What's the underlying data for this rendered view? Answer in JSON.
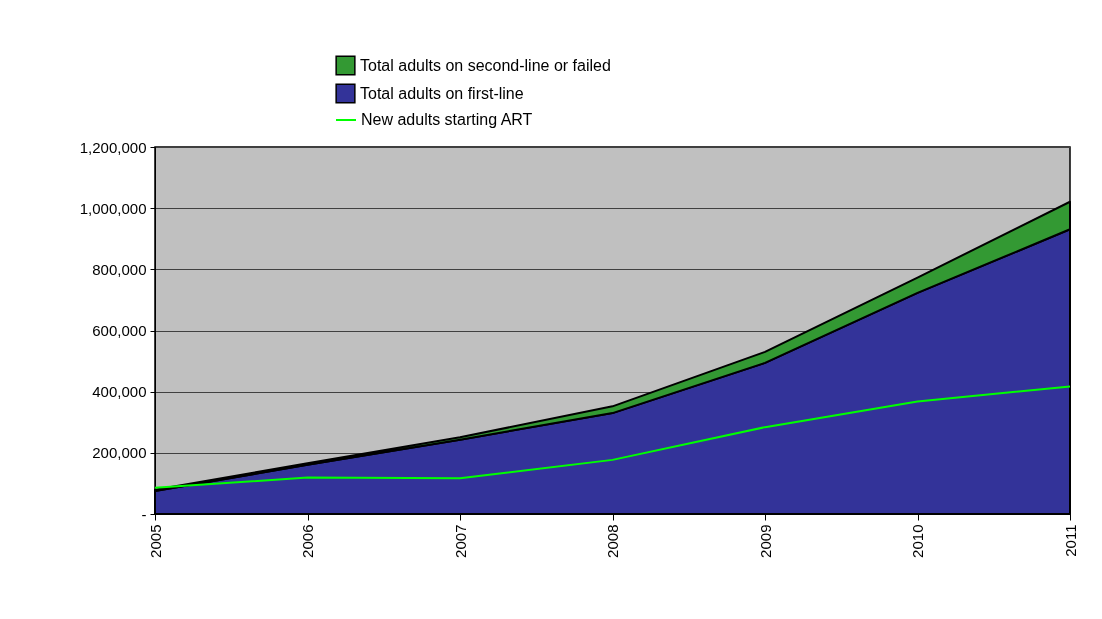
{
  "chart_data": {
    "type": "area",
    "stacked": true,
    "categories": [
      "2005",
      "2006",
      "2007",
      "2008",
      "2009",
      "2010",
      "2011"
    ],
    "series": [
      {
        "name": "Total adults on first-line",
        "color": "#333399",
        "values": [
          75000,
          161000,
          243000,
          330000,
          494000,
          723000,
          931000
        ]
      },
      {
        "name": "Total adults on second-line or failed",
        "color": "#339933",
        "values": [
          4000,
          5000,
          8000,
          22000,
          36000,
          50000,
          90000
        ]
      },
      {
        "name": "New adults starting ART",
        "type": "line",
        "color": "#00ff00",
        "values": [
          86000,
          119000,
          117000,
          177000,
          284000,
          368000,
          417000
        ]
      }
    ],
    "ylim": [
      0,
      1200000
    ],
    "yticks": [
      {
        "value": 0,
        "label": "-"
      },
      {
        "value": 200000,
        "label": "200,000"
      },
      {
        "value": 400000,
        "label": "400,000"
      },
      {
        "value": 600000,
        "label": "600,000"
      },
      {
        "value": 800000,
        "label": "800,000"
      },
      {
        "value": 1000000,
        "label": "1,000,000"
      },
      {
        "value": 1200000,
        "label": "1,200,000"
      }
    ],
    "grid": "y",
    "legend": "top",
    "marker": "none"
  }
}
